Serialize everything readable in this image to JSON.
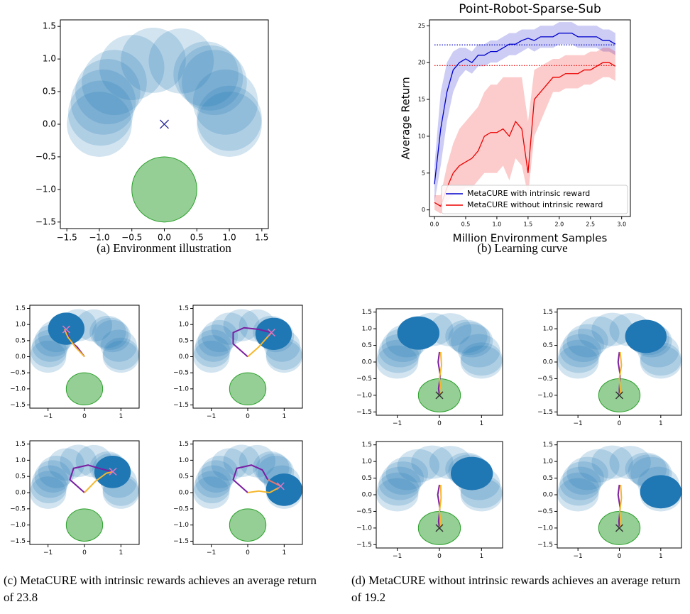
{
  "chart_data": [
    {
      "type": "scatter",
      "caption": "(a) Environment illustration",
      "xlim": [
        -1.6,
        1.6
      ],
      "ylim": [
        -1.6,
        1.6
      ],
      "xticks": [
        {
          "value": -1.5,
          "label": "−1.5"
        },
        {
          "value": -1.0,
          "label": "−1.0"
        },
        {
          "value": -0.5,
          "label": "−0.5"
        },
        {
          "value": 0,
          "label": "0.0"
        },
        {
          "value": 0.5,
          "label": "0.5"
        },
        {
          "value": 1.0,
          "label": "1.0"
        },
        {
          "value": 1.5,
          "label": "1.5"
        }
      ],
      "yticks": [
        {
          "value": -1.5,
          "label": "−1.5"
        },
        {
          "value": -1.0,
          "label": "−1.0"
        },
        {
          "value": -0.5,
          "label": "−0.5"
        },
        {
          "value": 0,
          "label": "0.0"
        },
        {
          "value": 0.5,
          "label": "0.5"
        },
        {
          "value": 1.0,
          "label": "1.0"
        },
        {
          "value": 1.5,
          "label": "1.5"
        }
      ],
      "goals": {
        "x": [
          -1.0,
          -0.98,
          -0.94,
          -0.87,
          -0.77,
          -0.5,
          -0.17,
          0.26,
          0.64,
          0.71,
          0.77,
          0.94,
          1.0,
          1.0
        ],
        "y": [
          0.0,
          0.17,
          0.34,
          0.5,
          0.64,
          0.87,
          0.98,
          0.97,
          0.77,
          0.71,
          0.64,
          0.34,
          0.09,
          0.0
        ],
        "radius": 0.5,
        "color": "#1f77b4",
        "opacity": 0.2
      },
      "target": {
        "x": 0,
        "y": -1,
        "radius": 0.5,
        "color": "#2ca02c",
        "opacity": 0.5
      },
      "marker": {
        "x": 0,
        "y": 0,
        "color": "#2b2b9a"
      }
    },
    {
      "type": "line",
      "title": "Point-Robot-Sparse-Sub",
      "caption": "(b) Learning curve",
      "xlabel": "Million Environment Samples",
      "ylabel": "Average Return",
      "xlim": [
        -0.08,
        3.14
      ],
      "ylim": [
        -0.9,
        25.8
      ],
      "xticks": [
        {
          "value": 0,
          "label": "0.0"
        },
        {
          "value": 0.5,
          "label": "0.5"
        },
        {
          "value": 1.0,
          "label": "1.0"
        },
        {
          "value": 1.5,
          "label": "1.5"
        },
        {
          "value": 2.0,
          "label": "2.0"
        },
        {
          "value": 2.5,
          "label": "2.5"
        },
        {
          "value": 3.0,
          "label": "3.0"
        }
      ],
      "yticks": [
        0,
        5,
        10,
        15,
        20,
        25
      ],
      "x": [
        0,
        0.1,
        0.2,
        0.3,
        0.4,
        0.5,
        0.6,
        0.7,
        0.8,
        0.9,
        1.0,
        1.1,
        1.2,
        1.3,
        1.4,
        1.5,
        1.6,
        1.7,
        1.8,
        1.9,
        2.0,
        2.1,
        2.2,
        2.3,
        2.4,
        2.5,
        2.6,
        2.7,
        2.8,
        2.9
      ],
      "series": [
        {
          "name": "MetaCURE with intrinsic reward",
          "color": "#0000cc",
          "values": [
            3.5,
            11,
            16,
            19,
            20,
            20.5,
            20,
            21,
            21,
            21.5,
            21.5,
            22,
            22.5,
            22.5,
            23,
            23.3,
            23,
            23.5,
            23.5,
            23.5,
            24,
            24,
            24,
            23.5,
            23.5,
            23.5,
            23.5,
            23,
            23,
            22.5
          ],
          "lower": [
            1,
            6,
            12,
            16,
            18,
            19,
            18.5,
            19.5,
            19.5,
            20,
            20,
            20.5,
            21,
            21,
            21.5,
            22,
            21.5,
            22,
            22,
            22,
            22.5,
            22.5,
            22.5,
            22,
            22,
            22,
            22,
            21.5,
            21.5,
            21
          ],
          "upper": [
            6,
            16,
            20,
            21.5,
            22,
            22,
            21.5,
            22.5,
            22.5,
            23,
            23,
            23.5,
            24,
            24,
            24.5,
            24.5,
            24.5,
            25,
            25,
            25,
            25.5,
            25.5,
            25.5,
            25,
            25,
            25,
            25,
            24.5,
            24.5,
            24
          ]
        },
        {
          "name": "MetaCURE without intrinsic reward",
          "color": "#ee0000",
          "values": [
            1,
            0.5,
            3,
            5,
            6,
            6.5,
            7,
            8,
            10,
            10.5,
            10.5,
            11,
            10,
            12,
            11,
            5,
            15,
            16,
            17,
            18,
            18,
            18.5,
            18.5,
            18.5,
            19,
            19,
            19.5,
            20,
            20,
            19.5
          ],
          "lower": [
            0,
            -0.5,
            1,
            2,
            2.5,
            3,
            3,
            4,
            5,
            5,
            5,
            6,
            4,
            7,
            6,
            2,
            10,
            12,
            14,
            16,
            16,
            16.5,
            16.5,
            16.5,
            17,
            17,
            17.5,
            18,
            18,
            17.5
          ],
          "upper": [
            2,
            2,
            6,
            9,
            11,
            12,
            13,
            14,
            16,
            17,
            17,
            18,
            18,
            18,
            18,
            12,
            19,
            19.5,
            20,
            20.5,
            20.5,
            21,
            21,
            21,
            21,
            21.5,
            21.5,
            22,
            22,
            21.5
          ]
        }
      ],
      "hlines": [
        {
          "value": 22.4,
          "color": "#0000cc"
        },
        {
          "value": 19.6,
          "color": "#ee0000"
        }
      ],
      "legend": "lower right"
    },
    {
      "type": "trajectory",
      "caption": "(c) MetaCURE with intrinsic rewards achieves an average return of 23.8",
      "xlim": [
        -1.5,
        1.5
      ],
      "ylim": [
        -1.6,
        1.6
      ],
      "xticks": [
        {
          "value": -1,
          "label": "−1"
        },
        0,
        1
      ],
      "yticks": [
        {
          "value": -1.5,
          "label": "−1.5"
        },
        {
          "value": -1.0,
          "label": "−1.0"
        },
        {
          "value": -0.5,
          "label": "−0.5"
        },
        {
          "value": 0,
          "label": "0.0"
        },
        {
          "value": 0.5,
          "label": "0.5"
        },
        {
          "value": 1.0,
          "label": "1.0"
        },
        {
          "value": 1.5,
          "label": "1.5"
        }
      ],
      "goals": {
        "x": [
          -1.0,
          -0.98,
          -0.94,
          -0.87,
          -0.77,
          -0.5,
          -0.17,
          0.26,
          0.64,
          0.71,
          0.77,
          0.94,
          1.0,
          1.0
        ],
        "y": [
          0.0,
          0.17,
          0.34,
          0.5,
          0.64,
          0.87,
          0.98,
          0.97,
          0.77,
          0.71,
          0.64,
          0.34,
          0.09,
          0.0
        ],
        "radius": 0.5,
        "color": "#1f77b4",
        "opacity": 0.2
      },
      "target": {
        "x": 0,
        "y": -1,
        "radius": 0.5,
        "color": "#2ca02c",
        "opacity": 0.5
      },
      "highlight_color": "#1f77b4",
      "panels": [
        {
          "highlight": [
            -0.5,
            0.87
          ],
          "cross": [
            -0.5,
            0.85
          ],
          "cross_color": "#e377c2",
          "trajectories": [
            {
              "color": "#7b1fa2",
              "x": [
                0,
                -0.2,
                -0.4,
                -0.5
              ],
              "y": [
                0,
                0.3,
                0.5,
                0.8
              ]
            },
            {
              "color": "#f5b82e",
              "x": [
                0,
                -0.25,
                -0.45,
                -0.55
              ],
              "y": [
                0,
                0.3,
                0.6,
                0.85
              ]
            }
          ]
        },
        {
          "highlight": [
            0.71,
            0.71
          ],
          "cross": [
            0.65,
            0.75
          ],
          "cross_color": "#e377c2",
          "trajectories": [
            {
              "color": "#7b1fa2",
              "x": [
                0,
                -0.4,
                -0.4,
                -0.1,
                0.3,
                0.65
              ],
              "y": [
                0,
                0.4,
                0.75,
                0.9,
                0.85,
                0.75
              ]
            },
            {
              "color": "#f5b82e",
              "x": [
                0,
                0.3,
                0.65
              ],
              "y": [
                0,
                0.3,
                0.75
              ]
            }
          ]
        },
        {
          "highlight": [
            0.77,
            0.64
          ],
          "cross": [
            0.78,
            0.65
          ],
          "cross_color": "#e377c2",
          "trajectories": [
            {
              "color": "#7b1fa2",
              "x": [
                0,
                -0.4,
                -0.3,
                0.1,
                0.4,
                0.75
              ],
              "y": [
                0,
                0.4,
                0.75,
                0.85,
                0.75,
                0.65
              ]
            },
            {
              "color": "#f5b82e",
              "x": [
                0,
                0.3,
                0.6,
                0.8
              ],
              "y": [
                0,
                0.35,
                0.6,
                0.65
              ]
            }
          ]
        },
        {
          "highlight": [
            1.0,
            0.09
          ],
          "cross": [
            0.9,
            0.2
          ],
          "cross_color": "#e377c2",
          "trajectories": [
            {
              "color": "#7b1fa2",
              "x": [
                0,
                -0.4,
                -0.3,
                0.1,
                0.4,
                0.55
              ],
              "y": [
                0,
                0.4,
                0.75,
                0.85,
                0.7,
                0.4
              ]
            },
            {
              "color": "#e9746a",
              "x": [
                0.55,
                0.9
              ],
              "y": [
                0.4,
                0.2
              ]
            },
            {
              "color": "#f5b82e",
              "x": [
                0,
                0.3,
                0.6,
                0.85
              ],
              "y": [
                0,
                0.05,
                0.0,
                0.15
              ]
            }
          ]
        }
      ]
    },
    {
      "type": "trajectory",
      "caption": "(d) MetaCURE without intrinsic rewards achieves an average return of 19.2",
      "xlim": [
        -1.5,
        1.5
      ],
      "ylim": [
        -1.6,
        1.6
      ],
      "xticks": [
        {
          "value": -1,
          "label": "−1"
        },
        0,
        1
      ],
      "yticks": [
        {
          "value": -1.5,
          "label": "−1.5"
        },
        {
          "value": -1.0,
          "label": "−1.0"
        },
        {
          "value": -0.5,
          "label": "−0.5"
        },
        {
          "value": 0,
          "label": "0.0"
        },
        {
          "value": 0.5,
          "label": "0.5"
        },
        {
          "value": 1.0,
          "label": "1.0"
        },
        {
          "value": 1.5,
          "label": "1.5"
        }
      ],
      "goals": {
        "x": [
          -1.0,
          -0.98,
          -0.94,
          -0.87,
          -0.77,
          -0.5,
          -0.17,
          0.26,
          0.64,
          0.71,
          0.77,
          0.94,
          1.0,
          1.0
        ],
        "y": [
          0.0,
          0.17,
          0.34,
          0.5,
          0.64,
          0.87,
          0.98,
          0.97,
          0.77,
          0.71,
          0.64,
          0.34,
          0.09,
          0.0
        ],
        "radius": 0.5,
        "color": "#1f77b4",
        "opacity": 0.2
      },
      "target": {
        "x": 0,
        "y": -1,
        "radius": 0.5,
        "color": "#2ca02c",
        "opacity": 0.5
      },
      "highlight_color": "#1f77b4",
      "panels": [
        {
          "highlight": [
            -0.5,
            0.87
          ],
          "cross": [
            0,
            -1
          ],
          "cross_color": "#333333",
          "trajectories": [
            {
              "color": "#7b1fa2",
              "x": [
                0,
                -0.03,
                0.02,
                -0.02,
                0
              ],
              "y": [
                0.3,
                0.0,
                -0.4,
                -0.8,
                -1.0
              ]
            },
            {
              "color": "#f5b82e",
              "x": [
                0.03,
                0.05,
                0.0,
                0.05,
                0.0
              ],
              "y": [
                0.3,
                -0.1,
                -0.5,
                -0.9,
                -1.0
              ]
            }
          ]
        },
        {
          "highlight": [
            0.64,
            0.77
          ],
          "cross": [
            0,
            -1
          ],
          "cross_color": "#333333",
          "trajectories": [
            {
              "color": "#7b1fa2",
              "x": [
                0,
                -0.03,
                0.02,
                0.0,
                0
              ],
              "y": [
                0.3,
                0.0,
                -0.4,
                -0.8,
                -1.0
              ]
            },
            {
              "color": "#f5b82e",
              "x": [
                0.02,
                0.05,
                0.0,
                0.03,
                0.0
              ],
              "y": [
                0.3,
                -0.1,
                -0.5,
                -0.9,
                -1.0
              ]
            }
          ]
        },
        {
          "highlight": [
            0.77,
            0.64
          ],
          "cross": [
            0,
            -1
          ],
          "cross_color": "#333333",
          "trajectories": [
            {
              "color": "#7b1fa2",
              "x": [
                0,
                -0.04,
                0.01,
                -0.02,
                0
              ],
              "y": [
                0.3,
                0.0,
                -0.4,
                -0.8,
                -1.0
              ]
            },
            {
              "color": "#f5b82e",
              "x": [
                0.03,
                0.04,
                0.0,
                0.04,
                0.0
              ],
              "y": [
                0.3,
                -0.1,
                -0.5,
                -0.9,
                -1.0
              ]
            }
          ]
        },
        {
          "highlight": [
            1.0,
            0.09
          ],
          "cross": [
            0,
            -1
          ],
          "cross_color": "#333333",
          "trajectories": [
            {
              "color": "#7b1fa2",
              "x": [
                0,
                -0.03,
                0.02,
                -0.01,
                0
              ],
              "y": [
                0.3,
                0.0,
                -0.4,
                -0.8,
                -1.0
              ]
            },
            {
              "color": "#f5b82e",
              "x": [
                0.03,
                0.05,
                0.01,
                0.04,
                0.0
              ],
              "y": [
                0.3,
                -0.1,
                -0.5,
                -0.9,
                -1.0
              ]
            }
          ]
        }
      ]
    }
  ]
}
